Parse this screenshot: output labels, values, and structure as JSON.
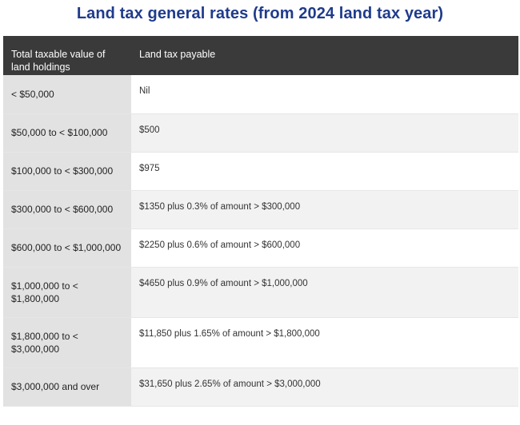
{
  "page": {
    "title": "Land tax general rates (from 2024 land tax year)"
  },
  "table": {
    "headers": [
      "Total taxable value of land holdings",
      "Land tax payable"
    ],
    "rows": [
      {
        "range": "< $50,000",
        "payable": "Nil"
      },
      {
        "range": "$50,000 to < $100,000",
        "payable": "$500"
      },
      {
        "range": "$100,000 to < $300,000",
        "payable": "$975"
      },
      {
        "range": "$300,000 to < $600,000",
        "payable": "$1350 plus 0.3% of amount > $300,000"
      },
      {
        "range": "$600,000 to < $1,000,000",
        "payable": "$2250 plus 0.6% of amount > $600,000"
      },
      {
        "range": "$1,000,000 to < $1,800,000",
        "payable": "$4650 plus 0.9% of amount > $1,000,000"
      },
      {
        "range": "$1,800,000 to < $3,000,000",
        "payable": "$11,850 plus 1.65% of amount > $1,800,000"
      },
      {
        "range": "$3,000,000 and over",
        "payable": "$31,650 plus 2.65% of amount > $3,000,000"
      }
    ]
  },
  "colors": {
    "title": "#1f3b8c",
    "header_bg": "#3a3a3a",
    "range_col_bg": "#e2e2e2",
    "alt_row_bg": "#f2f2f2"
  }
}
